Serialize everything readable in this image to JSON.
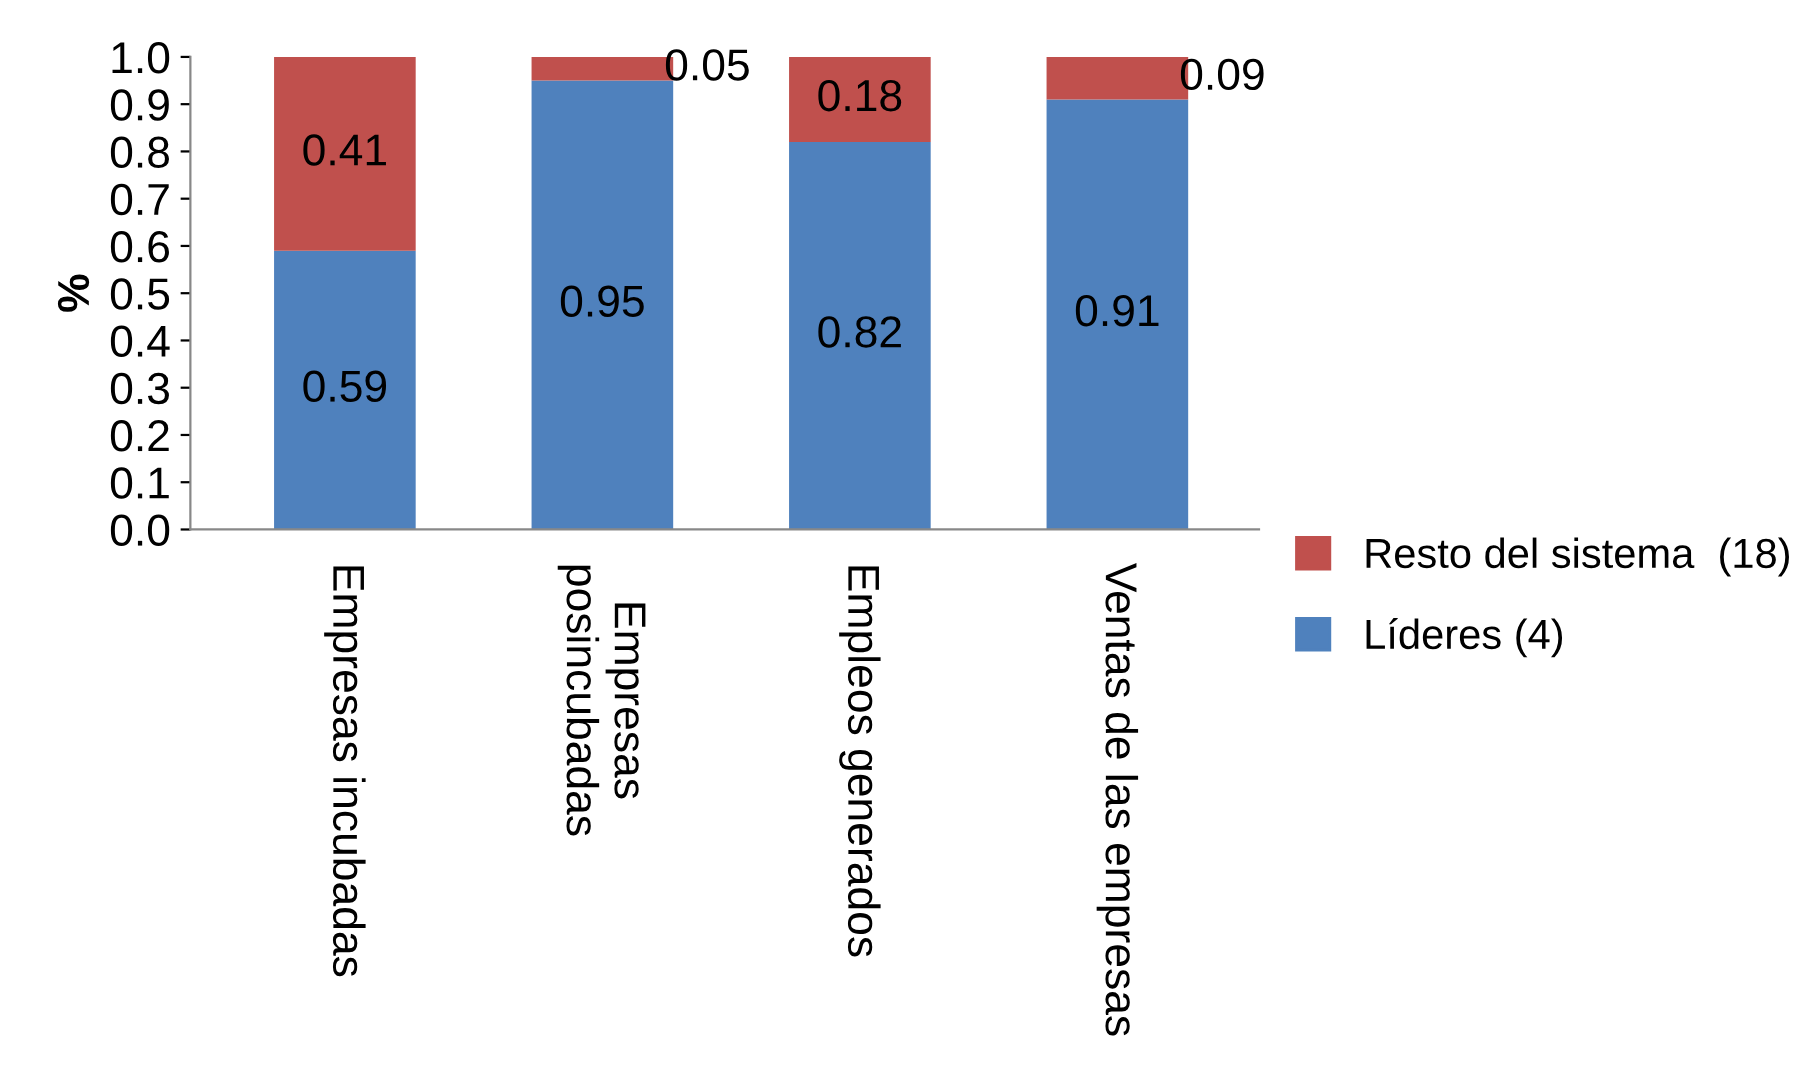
{
  "chart_data": {
    "type": "bar",
    "stacked": true,
    "ylabel": "%",
    "categories": [
      "Empresas incubadas",
      "Empresas\nposincubadas",
      "Empleos generados",
      "Ventas de las empresas"
    ],
    "series": [
      {
        "name": "Líderes (4)",
        "color": "#4f81bd",
        "values": [
          0.59,
          0.95,
          0.82,
          0.91
        ]
      },
      {
        "name": "Resto del sistema  (18)",
        "color": "#c0504d",
        "values": [
          0.41,
          0.05,
          0.18,
          0.09
        ]
      }
    ],
    "ylim": [
      0,
      1.0
    ],
    "yticks": [
      {
        "value": 0,
        "label": "0.0"
      },
      {
        "value": 0.1,
        "label": "0.1"
      },
      {
        "value": 0.2,
        "label": "0.2"
      },
      {
        "value": 0.3,
        "label": "0.3"
      },
      {
        "value": 0.4,
        "label": "0.4"
      },
      {
        "value": 0.5,
        "label": "0.5"
      },
      {
        "value": 0.6,
        "label": "0.6"
      },
      {
        "value": 0.7,
        "label": "0.7"
      },
      {
        "value": 0.8,
        "label": "0.8"
      },
      {
        "value": 0.9,
        "label": "0.9"
      },
      {
        "value": 1.0,
        "label": "1.0"
      }
    ],
    "grid": false,
    "legend": "right",
    "data_labels": true
  }
}
